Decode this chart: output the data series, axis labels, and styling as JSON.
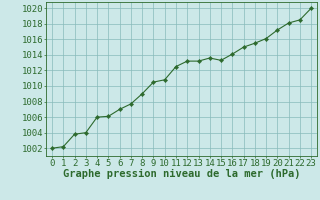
{
  "x": [
    0,
    1,
    2,
    3,
    4,
    5,
    6,
    7,
    8,
    9,
    10,
    11,
    12,
    13,
    14,
    15,
    16,
    17,
    18,
    19,
    20,
    21,
    22,
    23
  ],
  "y": [
    1002.0,
    1002.2,
    1003.8,
    1004.0,
    1006.0,
    1006.1,
    1007.0,
    1007.7,
    1009.0,
    1010.5,
    1010.8,
    1012.5,
    1013.2,
    1013.2,
    1013.6,
    1013.3,
    1014.1,
    1015.0,
    1015.5,
    1016.1,
    1017.2,
    1018.1,
    1018.5,
    1020.0
  ],
  "line_color": "#2d6a2d",
  "marker_color": "#2d6a2d",
  "bg_color": "#cce8e8",
  "grid_color": "#88bbbb",
  "xlabel": "Graphe pression niveau de la mer (hPa)",
  "ylabel_ticks": [
    1002,
    1004,
    1006,
    1008,
    1010,
    1012,
    1014,
    1016,
    1018,
    1020
  ],
  "xlim": [
    -0.5,
    23.5
  ],
  "ylim": [
    1001.0,
    1020.8
  ],
  "xlabel_color": "#2d6a2d",
  "tick_color": "#2d6a2d",
  "xlabel_fontsize": 7.5,
  "tick_fontsize": 6.5,
  "xtick_labels": [
    "0",
    "1",
    "2",
    "3",
    "4",
    "5",
    "6",
    "7",
    "8",
    "9",
    "10",
    "11",
    "12",
    "13",
    "14",
    "15",
    "16",
    "17",
    "18",
    "19",
    "20",
    "21",
    "22",
    "23"
  ]
}
